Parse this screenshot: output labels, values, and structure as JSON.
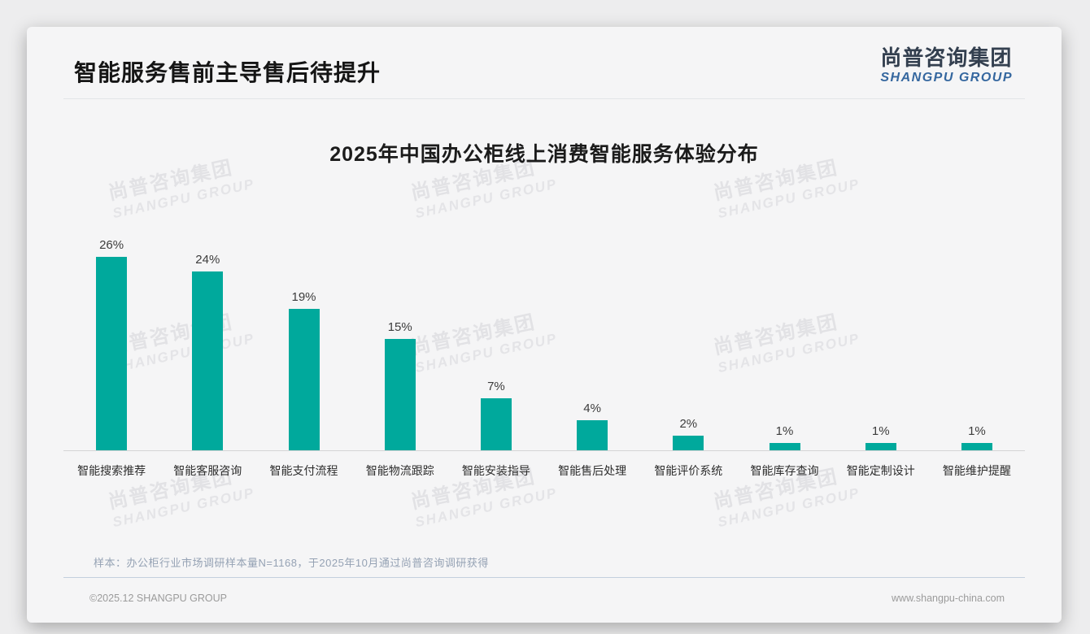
{
  "page": {
    "title": "智能服务售前主导售后待提升",
    "logo": {
      "cn": "尚普咨询集团",
      "en": "SHANGPU GROUP"
    },
    "watermark": {
      "cn": "尚普咨询集团",
      "en": "SHANGPU GROUP"
    },
    "footnote": "样本：办公柜行业市场调研样本量N=1168，于2025年10月通过尚普咨询调研获得",
    "footer": {
      "copyright": "©2025.12 SHANGPU GROUP",
      "website": "www.shangpu-china.com"
    }
  },
  "colors": {
    "bar": "#00A99C",
    "logo_cn": "#333F4F",
    "logo_en": "#35679F",
    "watermark": "#E2E2E5",
    "footnote": "#95A2B4",
    "footer_divider": "#C3CFDD"
  },
  "chart_data": {
    "type": "bar",
    "title": "2025年中国办公柜线上消费智能服务体验分布",
    "categories": [
      "智能搜索推荐",
      "智能客服咨询",
      "智能支付流程",
      "智能物流跟踪",
      "智能安装指导",
      "智能售后处理",
      "智能评价系统",
      "智能库存查询",
      "智能定制设计",
      "智能维护提醒"
    ],
    "values": [
      26,
      24,
      19,
      15,
      7,
      4,
      2,
      1,
      1,
      1
    ],
    "value_labels": [
      "26%",
      "24%",
      "19%",
      "15%",
      "7%",
      "4%",
      "2%",
      "1%",
      "1%",
      "1%"
    ],
    "unit": "%",
    "xlabel": "",
    "ylabel": "",
    "ylim": [
      0,
      28
    ],
    "bar_color": "#00A99C",
    "grid": "off",
    "legend": "none"
  }
}
